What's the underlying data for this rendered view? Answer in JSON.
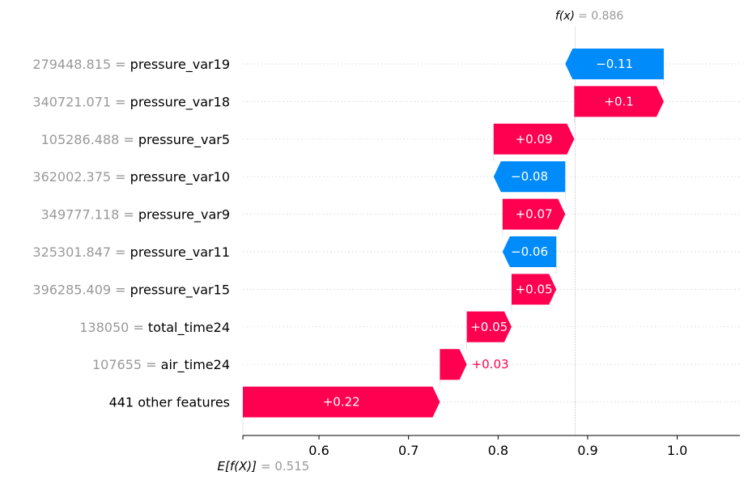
{
  "chart_data": {
    "type": "waterfall",
    "fx_label": "f(x)",
    "fx_value": "0.886",
    "fx": 0.886,
    "base_label": "E[f(X)]",
    "base_value_text": "0.515",
    "base_value": 0.515,
    "xlim": [
      0.515,
      1.07
    ],
    "xticks": [
      0.6,
      0.7,
      0.8,
      0.9,
      1.0
    ],
    "xtick_labels": [
      "0.6",
      "0.7",
      "0.8",
      "0.9",
      "1.0"
    ],
    "colors": {
      "positive": "#ff0051",
      "negative": "#008bfb",
      "muted": "#999999"
    },
    "features": [
      {
        "value": "279448.815",
        "name": "pressure_var19",
        "shap": -0.11,
        "label": "−0.11"
      },
      {
        "value": "340721.071",
        "name": "pressure_var18",
        "shap": 0.1,
        "label": "+0.1"
      },
      {
        "value": "105286.488",
        "name": "pressure_var5",
        "shap": 0.09,
        "label": "+0.09"
      },
      {
        "value": "362002.375",
        "name": "pressure_var10",
        "shap": -0.08,
        "label": "−0.08"
      },
      {
        "value": "349777.118",
        "name": "pressure_var9",
        "shap": 0.07,
        "label": "+0.07"
      },
      {
        "value": "325301.847",
        "name": "pressure_var11",
        "shap": -0.06,
        "label": "−0.06"
      },
      {
        "value": "396285.409",
        "name": "pressure_var15",
        "shap": 0.05,
        "label": "+0.05"
      },
      {
        "value": "138050",
        "name": "total_time24",
        "shap": 0.05,
        "label": "+0.05"
      },
      {
        "value": "107655",
        "name": "air_time24",
        "shap": 0.03,
        "label": "+0.03"
      },
      {
        "value": "",
        "name": "441 other features",
        "shap": 0.22,
        "label": "+0.22"
      }
    ]
  }
}
